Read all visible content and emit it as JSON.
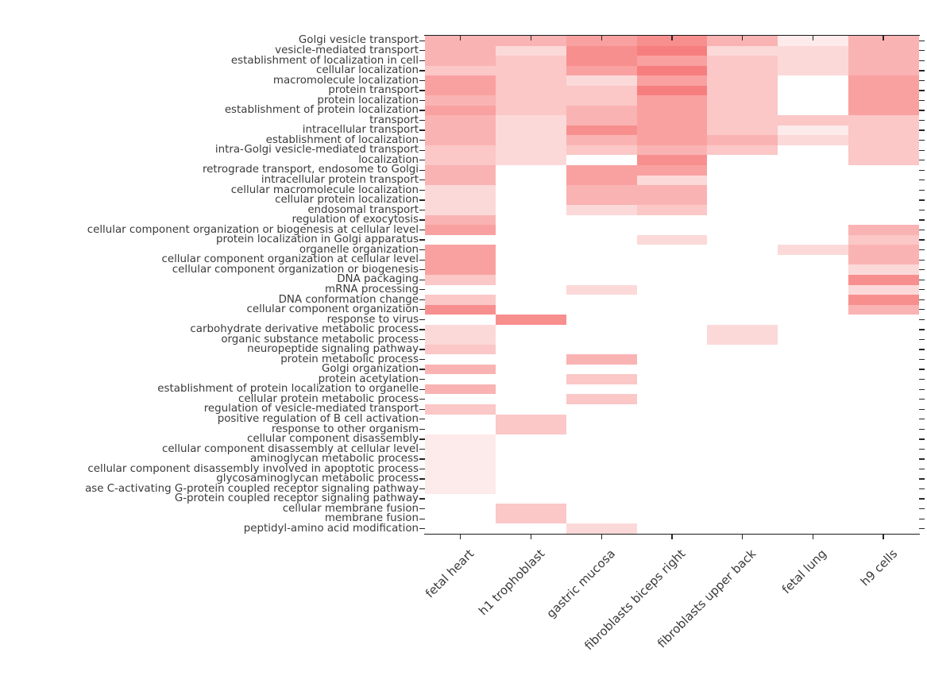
{
  "figure": {
    "background": "#ffffff",
    "title": ""
  },
  "chart_data": {
    "type": "heatmap",
    "title": "",
    "xlabel": "",
    "ylabel": "",
    "legend": "none",
    "grid": "off",
    "colormap": "white-to-red",
    "x_tick_rotation_deg": 45,
    "columns": [
      "fetal heart",
      "h1 trophoblast",
      "gastric mucosa",
      "fibroblasts biceps right",
      "fibroblasts upper back",
      "fetal lung",
      "h9 cells"
    ],
    "rows": [
      "Golgi vesicle transport",
      "vesicle-mediated transport",
      "establishment of localization in cell",
      "cellular localization",
      "macromolecule localization",
      "protein transport",
      "protein localization",
      "establishment of protein localization",
      "transport",
      "intracellular transport",
      "establishment of localization",
      "intra-Golgi vesicle-mediated transport",
      "localization",
      "retrograde transport, endosome to Golgi",
      "intracellular protein transport",
      "cellular macromolecule localization",
      "cellular protein localization",
      "endosomal transport",
      "regulation of exocytosis",
      "cellular component organization or biogenesis at cellular level",
      "protein localization in Golgi apparatus",
      "organelle organization",
      "cellular component organization at cellular level",
      "cellular component organization or biogenesis",
      "DNA packaging",
      "mRNA processing",
      "DNA conformation change",
      "cellular component organization",
      "response to virus",
      "carbohydrate derivative metabolic process",
      "organic substance metabolic process",
      "neuropeptide signaling pathway",
      "protein metabolic process",
      "Golgi organization",
      "protein acetylation",
      "establishment of protein localization to organelle",
      "cellular protein metabolic process",
      "regulation of vesicle-mediated transport",
      "positive regulation of B cell activation",
      "response to other organism",
      "cellular component disassembly",
      "cellular component disassembly at cellular level",
      "aminoglycan metabolic process",
      "cellular component disassembly involved in apoptotic process",
      "glycosaminoglycan metabolic process",
      "ase C-activating G-protein coupled receptor signaling pathway",
      "G-protein coupled receptor signaling pathway",
      "cellular membrane fusion",
      "membrane fusion",
      "peptidyl-amino acid modification"
    ],
    "intensity_palette": {
      "0": "#ffffff",
      "1": "#fdeaea",
      "2": "#fcd9d9",
      "3": "#fbc7c7",
      "4": "#fab3b3",
      "5": "#f9a1a1",
      "6": "#f88f8f",
      "7": "#f77e7e"
    },
    "values": [
      [
        4,
        4,
        5,
        6,
        4,
        1,
        4
      ],
      [
        4,
        2,
        6,
        7,
        2,
        2,
        4
      ],
      [
        4,
        3,
        6,
        5,
        3,
        2,
        4
      ],
      [
        3,
        3,
        5,
        7,
        3,
        2,
        4
      ],
      [
        5,
        3,
        2,
        5,
        3,
        0,
        5
      ],
      [
        5,
        3,
        3,
        7,
        3,
        0,
        5
      ],
      [
        4,
        3,
        3,
        5,
        3,
        0,
        5
      ],
      [
        5,
        3,
        4,
        5,
        3,
        0,
        5
      ],
      [
        4,
        2,
        4,
        5,
        3,
        3,
        3
      ],
      [
        4,
        2,
        6,
        5,
        3,
        1,
        3
      ],
      [
        4,
        2,
        4,
        5,
        4,
        2,
        3
      ],
      [
        3,
        2,
        3,
        4,
        3,
        0,
        3
      ],
      [
        3,
        2,
        0,
        6,
        0,
        0,
        3
      ],
      [
        4,
        0,
        5,
        5,
        0,
        0,
        0
      ],
      [
        4,
        0,
        5,
        2,
        0,
        0,
        0
      ],
      [
        2,
        0,
        4,
        4,
        0,
        0,
        0
      ],
      [
        2,
        0,
        4,
        4,
        0,
        0,
        0
      ],
      [
        2,
        0,
        2,
        3,
        0,
        0,
        0
      ],
      [
        4,
        0,
        0,
        0,
        0,
        0,
        0
      ],
      [
        5,
        0,
        0,
        0,
        0,
        0,
        4
      ],
      [
        0,
        0,
        0,
        2,
        0,
        0,
        3
      ],
      [
        5,
        0,
        0,
        0,
        0,
        2,
        4
      ],
      [
        5,
        0,
        0,
        0,
        0,
        0,
        4
      ],
      [
        5,
        0,
        0,
        0,
        0,
        0,
        2
      ],
      [
        3,
        0,
        0,
        0,
        0,
        0,
        6
      ],
      [
        0,
        0,
        2,
        0,
        0,
        0,
        2
      ],
      [
        3,
        0,
        0,
        0,
        0,
        0,
        6
      ],
      [
        6,
        0,
        0,
        0,
        0,
        0,
        4
      ],
      [
        0,
        6,
        0,
        0,
        0,
        0,
        0
      ],
      [
        2,
        0,
        0,
        0,
        2,
        0,
        0
      ],
      [
        2,
        0,
        0,
        0,
        2,
        0,
        0
      ],
      [
        3,
        0,
        0,
        0,
        0,
        0,
        0
      ],
      [
        0,
        0,
        4,
        0,
        0,
        0,
        0
      ],
      [
        4,
        0,
        0,
        0,
        0,
        0,
        0
      ],
      [
        0,
        0,
        3,
        0,
        0,
        0,
        0
      ],
      [
        4,
        0,
        0,
        0,
        0,
        0,
        0
      ],
      [
        0,
        0,
        3,
        0,
        0,
        0,
        0
      ],
      [
        3,
        0,
        0,
        0,
        0,
        0,
        0
      ],
      [
        0,
        3,
        0,
        0,
        0,
        0,
        0
      ],
      [
        0,
        3,
        0,
        0,
        0,
        0,
        0
      ],
      [
        1,
        0,
        0,
        0,
        0,
        0,
        0
      ],
      [
        1,
        0,
        0,
        0,
        0,
        0,
        0
      ],
      [
        1,
        0,
        0,
        0,
        0,
        0,
        0
      ],
      [
        1,
        0,
        0,
        0,
        0,
        0,
        0
      ],
      [
        1,
        0,
        0,
        0,
        0,
        0,
        0
      ],
      [
        1,
        0,
        0,
        0,
        0,
        0,
        0
      ],
      [
        0,
        0,
        0,
        0,
        0,
        0,
        0
      ],
      [
        0,
        3,
        0,
        0,
        0,
        0,
        0
      ],
      [
        0,
        3,
        0,
        0,
        0,
        0,
        0
      ],
      [
        0,
        0,
        2,
        0,
        0,
        0,
        0
      ]
    ]
  }
}
